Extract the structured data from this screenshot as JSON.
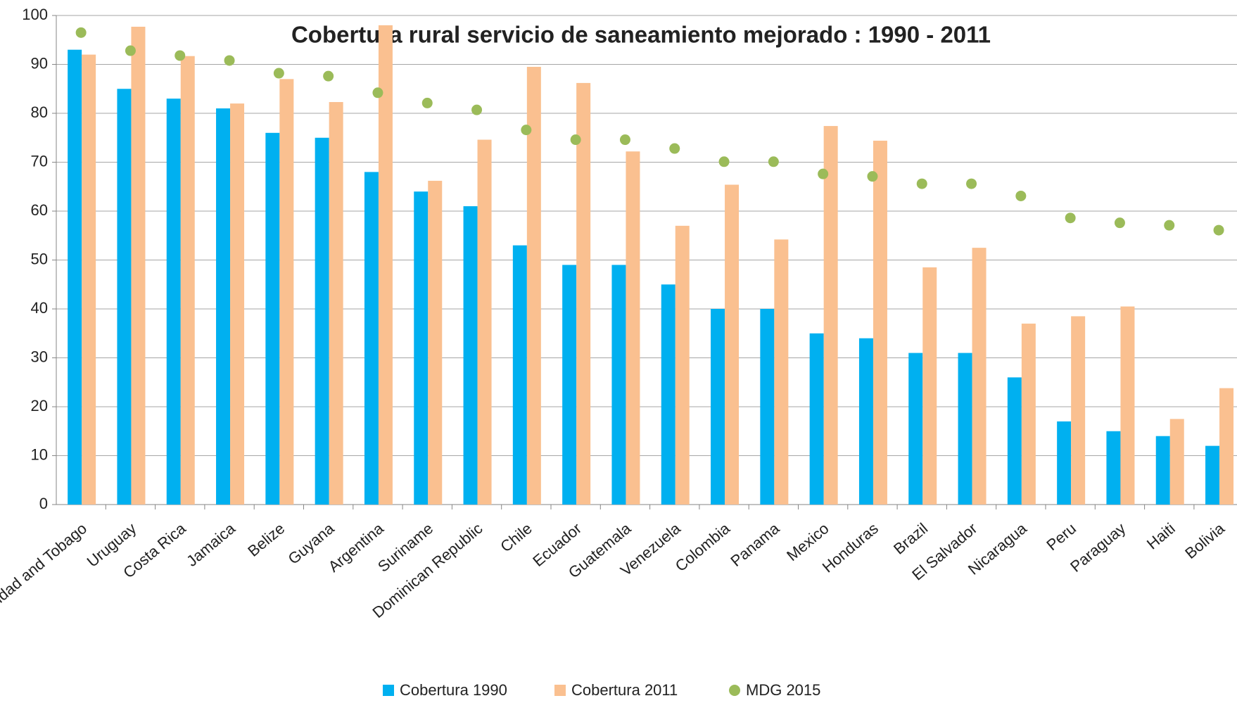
{
  "chart_data": {
    "type": "bar",
    "title": "Cobertura rural servicio de saneamiento mejorado : 1990 - 2011",
    "categories": [
      "Trinidad and Tobago",
      "Uruguay",
      "Costa Rica",
      "Jamaica",
      "Belize",
      "Guyana",
      "Argentina",
      "Suriname",
      "Dominican Republic",
      "Chile",
      "Ecuador",
      "Guatemala",
      "Venezuela",
      "Colombia",
      "Panama",
      "Mexico",
      "Honduras",
      "Brazil",
      "El Salvador",
      "Nicaragua",
      "Peru",
      "Paraguay",
      "Haiti",
      "Bolivia"
    ],
    "series": [
      {
        "name": "Cobertura 1990",
        "color": "#00b0f0",
        "kind": "bar",
        "values": [
          93,
          85,
          83,
          81,
          76,
          75,
          68,
          64,
          61,
          53,
          49,
          49,
          45,
          40,
          40,
          35,
          34,
          31,
          31,
          26,
          17,
          15,
          14,
          12
        ]
      },
      {
        "name": "Cobertura 2011",
        "color": "#fac090",
        "kind": "bar",
        "values": [
          92,
          97.7,
          91.7,
          82,
          87,
          82.3,
          98,
          66.2,
          74.6,
          89.5,
          86.2,
          72.2,
          57,
          65.4,
          54.2,
          77.4,
          74.4,
          48.5,
          52.5,
          37,
          38.5,
          40.5,
          17.5,
          23.8
        ]
      },
      {
        "name": "MDG 2015",
        "color": "#9bbb59",
        "kind": "dot",
        "values": [
          96.5,
          92.8,
          91.8,
          90.8,
          88.2,
          87.6,
          84.2,
          82.1,
          80.7,
          76.6,
          74.6,
          74.6,
          72.8,
          70.1,
          70.1,
          67.6,
          67.1,
          65.6,
          65.6,
          63.1,
          58.6,
          57.6,
          57.1,
          56.1
        ]
      }
    ],
    "ylim": [
      0,
      100
    ],
    "yticks": [
      0,
      10,
      20,
      30,
      40,
      50,
      60,
      70,
      80,
      90,
      100
    ],
    "grid": true
  }
}
